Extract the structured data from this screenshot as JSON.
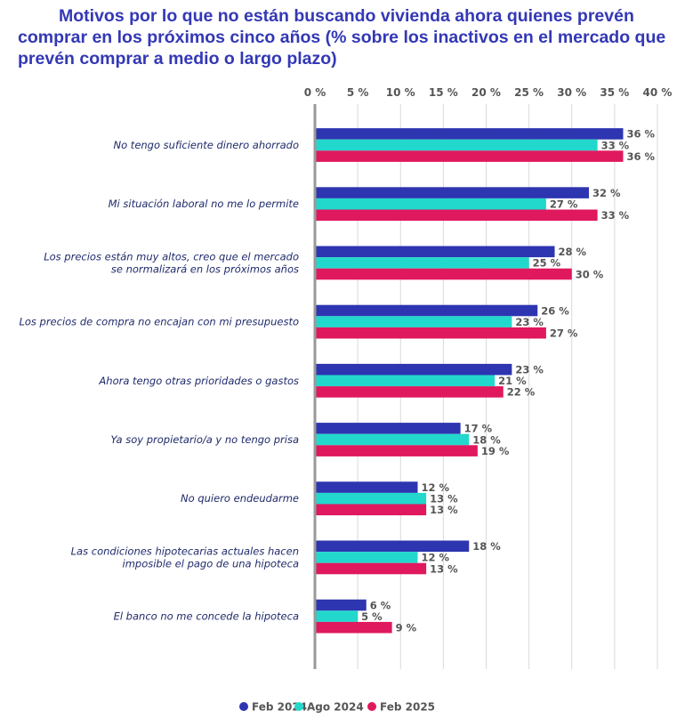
{
  "chart_data": {
    "type": "bar",
    "orientation": "horizontal",
    "title": "Motivos por lo que no están buscando vivienda ahora quienes prevén comprar en los próximos cinco años (% sobre los inactivos en el mercado que prevén comprar a medio o largo plazo)",
    "categories": [
      [
        "No tengo suficiente dinero ahorrado"
      ],
      [
        "Mi situación laboral no me lo permite"
      ],
      [
        "Los precios están muy altos, creo que el mercado",
        "se normalizará en los próximos años"
      ],
      [
        "Los precios de compra no encajan con mi presupuesto"
      ],
      [
        "Ahora tengo otras prioridades o gastos"
      ],
      [
        "Ya soy propietario/a y no tengo prisa"
      ],
      [
        "No quiero endeudarme"
      ],
      [
        "Las condiciones hipotecarias actuales hacen",
        "imposible el pago de una hipoteca"
      ],
      [
        "El banco no me concede la hipoteca"
      ]
    ],
    "series": [
      {
        "name": "Feb 2024",
        "color": "#2e35b0",
        "values": [
          36,
          32,
          28,
          26,
          23,
          17,
          12,
          18,
          6
        ]
      },
      {
        "name": "Ago 2024",
        "color": "#22d8cc",
        "values": [
          33,
          27,
          25,
          23,
          21,
          18,
          13,
          12,
          5
        ]
      },
      {
        "name": "Feb 2025",
        "color": "#e0185e",
        "values": [
          36,
          33,
          30,
          27,
          22,
          19,
          13,
          13,
          9
        ]
      }
    ],
    "xlim": [
      0,
      40
    ],
    "xticks": [
      0,
      5,
      10,
      15,
      20,
      25,
      30,
      35,
      40
    ],
    "tick_suffix": " %",
    "grid": true,
    "axis_position": "top",
    "legend_placement": "bottom"
  }
}
